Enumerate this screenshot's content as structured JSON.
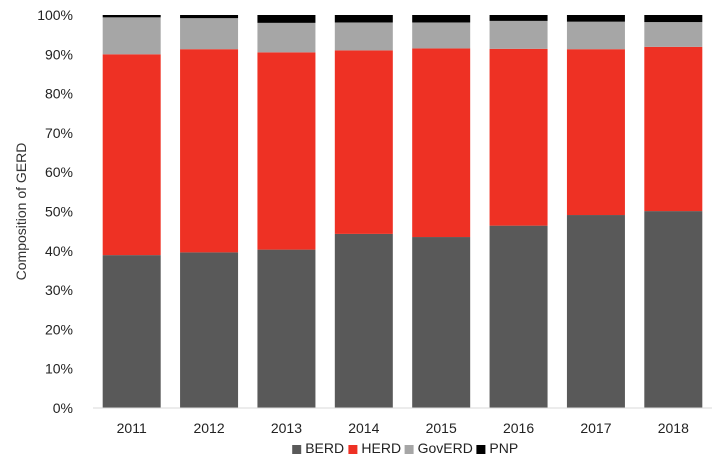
{
  "chart_data": {
    "type": "bar",
    "stacked": true,
    "title": "",
    "xlabel": "",
    "ylabel": "Composition of GERD",
    "ylim": [
      0,
      100
    ],
    "yticks": [
      "0%",
      "10%",
      "20%",
      "30%",
      "40%",
      "50%",
      "60%",
      "70%",
      "80%",
      "90%",
      "100%"
    ],
    "categories": [
      "2011",
      "2012",
      "2013",
      "2014",
      "2015",
      "2016",
      "2017",
      "2018"
    ],
    "series": [
      {
        "name": "BERD",
        "color": "#595959",
        "values": [
          38.9,
          39.6,
          40.3,
          44.3,
          43.5,
          46.4,
          49.1,
          50.1
        ]
      },
      {
        "name": "HERD",
        "color": "#ee3124",
        "values": [
          51.1,
          51.7,
          50.2,
          46.7,
          48.0,
          45.0,
          42.2,
          41.8
        ]
      },
      {
        "name": "GovERD",
        "color": "#a6a6a6",
        "values": [
          9.4,
          7.9,
          7.5,
          7.1,
          6.6,
          7.1,
          7.0,
          6.3
        ]
      },
      {
        "name": "PNP",
        "color": "#000000",
        "values": [
          0.6,
          0.8,
          2.0,
          1.9,
          1.9,
          1.5,
          1.7,
          1.8
        ]
      }
    ],
    "legend_position": "bottom",
    "grid": false
  }
}
